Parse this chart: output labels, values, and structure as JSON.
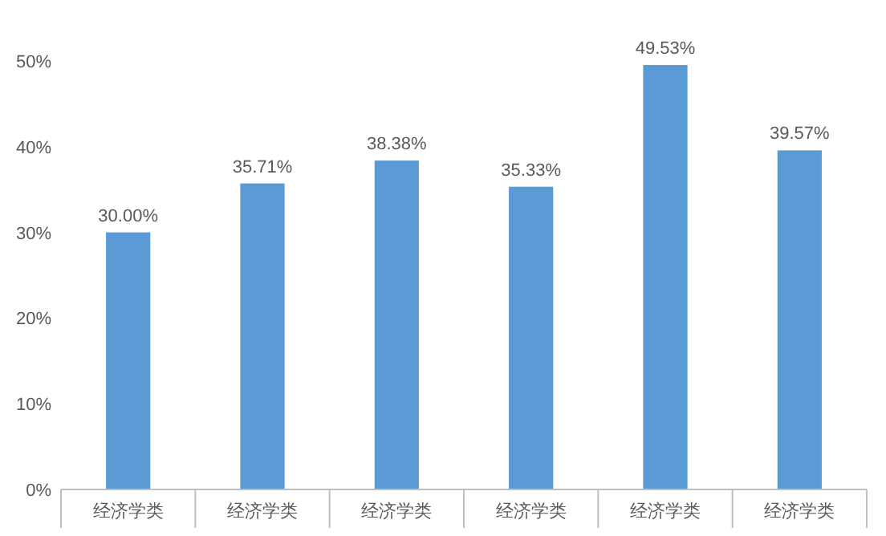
{
  "chart_data": {
    "type": "bar",
    "categories": [
      "经济学类",
      "经济学类",
      "经济学类",
      "经济学类",
      "经济学类",
      "经济学类"
    ],
    "values": [
      30.0,
      35.71,
      38.38,
      35.33,
      49.53,
      39.57
    ],
    "value_labels": [
      "30.00%",
      "35.71%",
      "38.38%",
      "35.33%",
      "49.53%",
      "39.57%"
    ],
    "color": "#5b9bd5",
    "ylim": [
      0,
      50
    ],
    "yticks": [
      {
        "value": 0,
        "label": "0%"
      },
      {
        "value": 10,
        "label": "10%"
      },
      {
        "value": 20,
        "label": "20%"
      },
      {
        "value": 30,
        "label": "30%"
      },
      {
        "value": 40,
        "label": "40%"
      },
      {
        "value": 50,
        "label": "50%"
      }
    ],
    "grid": false
  }
}
